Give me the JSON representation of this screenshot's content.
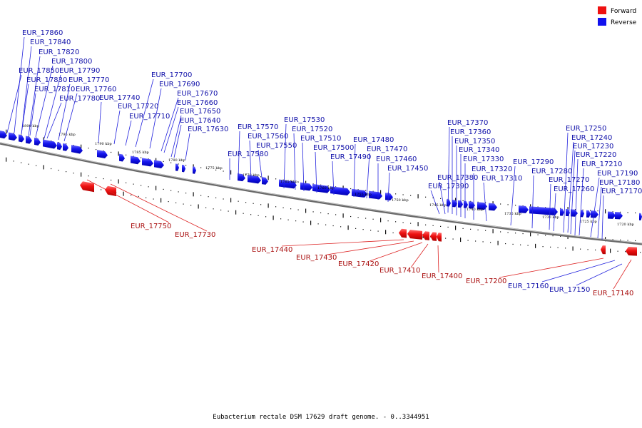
{
  "caption": "Eubacterium rectale DSM 17629 draft genome. - 0..3344951",
  "legend": [
    {
      "label": "Forward",
      "color": "#ee1111"
    },
    {
      "label": "Reverse",
      "color": "#1111ee"
    }
  ],
  "colors": {
    "forward": "#ee1111",
    "reverse": "#1111ee",
    "backbone": "#888888"
  },
  "ticks": [
    "1800 kbp",
    "1795 kbp",
    "1790 kbp",
    "1785 kbp",
    "1780 kbp",
    "1775 kbp",
    "1770 kbp",
    "1765 kbp",
    "1760 kbp",
    "1755 kbp",
    "1750 kbp",
    "1745 kbp",
    "1740 kbp",
    "1735 kbp",
    "1730 kbp",
    "1725 kbp",
    "1720 kbp"
  ],
  "reverse_labels": [
    "EUR_17860",
    "EUR_17840",
    "EUR_17820",
    "EUR_17800",
    "EUR_17850",
    "EUR_17790",
    "EUR_17830",
    "EUR_17770",
    "EUR_17810",
    "EUR_17760",
    "EUR_17780",
    "EUR_17740",
    "EUR_17720",
    "EUR_17710",
    "EUR_17700",
    "EUR_17690",
    "EUR_17670",
    "EUR_17660",
    "EUR_17650",
    "EUR_17640",
    "EUR_17630",
    "EUR_17570",
    "EUR_17560",
    "EUR_17550",
    "EUR_17580",
    "EUR_17530",
    "EUR_17520",
    "EUR_17510",
    "EUR_17500",
    "EUR_17490",
    "EUR_17480",
    "EUR_17470",
    "EUR_17460",
    "EUR_17450",
    "EUR_17370",
    "EUR_17360",
    "EUR_17350",
    "EUR_17340",
    "EUR_17330",
    "EUR_17320",
    "EUR_17380",
    "EUR_17310",
    "EUR_17390",
    "EUR_17290",
    "EUR_17280",
    "EUR_17270",
    "EUR_17260",
    "EUR_17250",
    "EUR_17240",
    "EUR_17230",
    "EUR_17220",
    "EUR_17210",
    "EUR_17190",
    "EUR_17180",
    "EUR_17170",
    "EUR_17160",
    "EUR_17150"
  ],
  "forward_labels": [
    "EUR_17750",
    "EUR_17730",
    "EUR_17440",
    "EUR_17430",
    "EUR_17420",
    "EUR_17410",
    "EUR_17400",
    "EUR_17200",
    "EUR_17140"
  ]
}
